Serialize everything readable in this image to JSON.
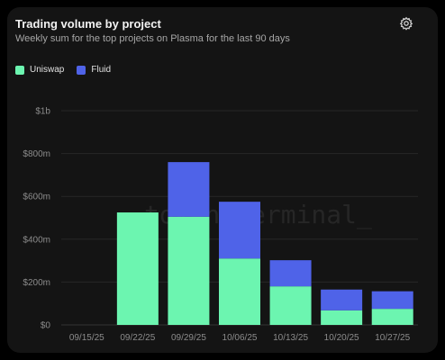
{
  "header": {
    "title": "Trading volume by project",
    "subtitle": "Weekly sum for the top projects on Plasma for the last 90 days",
    "settings_icon": "gear-icon"
  },
  "watermark": "token terminal_",
  "colors": {
    "uniswap": "#6cf5b0",
    "fluid": "#4f63e8",
    "grid": "#262626",
    "tick": "#8c8c8c"
  },
  "chart_data": {
    "type": "bar",
    "stacked": true,
    "categories": [
      "09/15/25",
      "09/22/25",
      "09/29/25",
      "10/06/25",
      "10/13/25",
      "10/20/25",
      "10/27/25"
    ],
    "series": [
      {
        "name": "Uniswap",
        "values": [
          0,
          525,
          505,
          310,
          180,
          68,
          75
        ]
      },
      {
        "name": "Fluid",
        "values": [
          0,
          0,
          255,
          265,
          122,
          97,
          82
        ]
      }
    ],
    "ylim": [
      0,
      1000
    ],
    "yticks": [
      0,
      200,
      400,
      600,
      800,
      1000
    ],
    "ytick_labels": [
      "$0",
      "$200m",
      "$400m",
      "$600m",
      "$800m",
      "$1b"
    ],
    "grid": true,
    "legend": "top-left"
  }
}
